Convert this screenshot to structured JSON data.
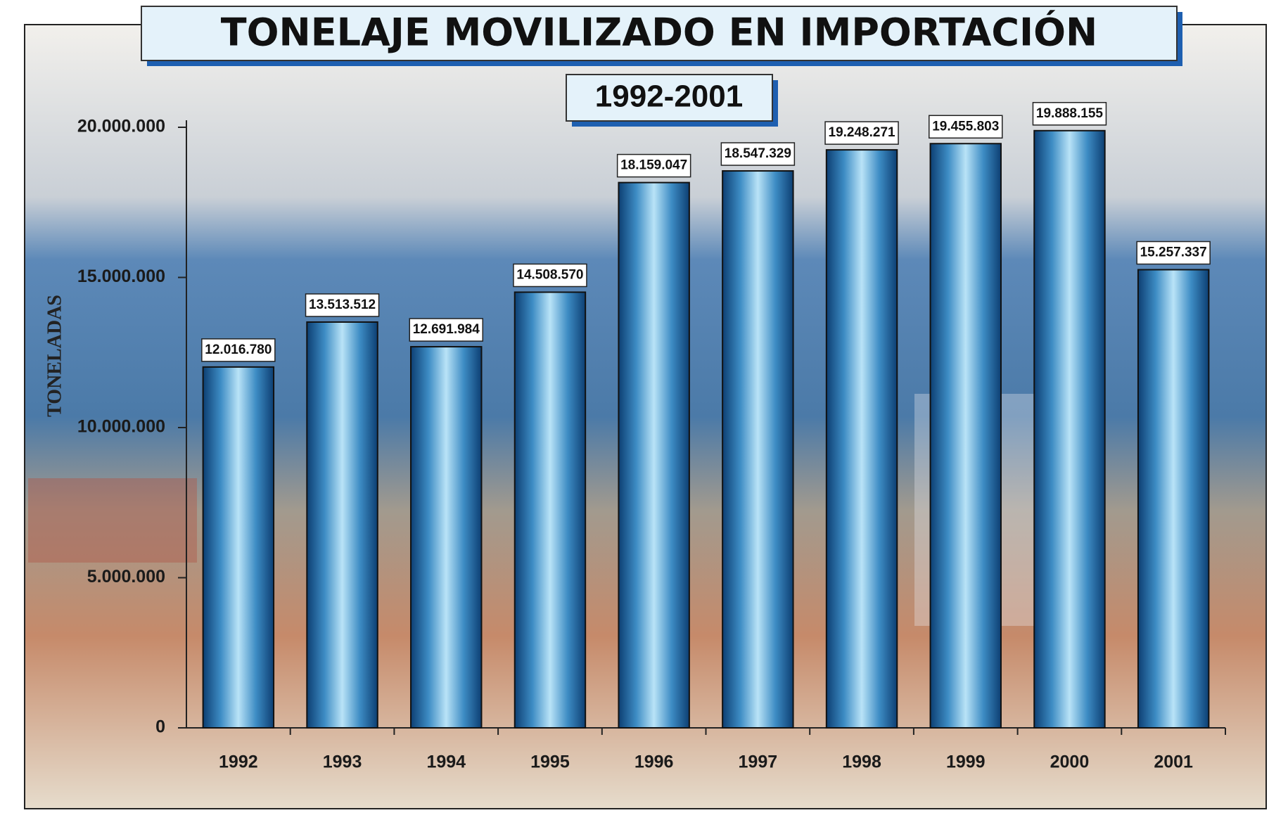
{
  "chart_data": {
    "type": "bar",
    "title": "TONELAJE MOVILIZADO EN IMPORTACIÓN",
    "subtitle": "1992-2001",
    "y_label": "TONELADAS",
    "categories": [
      "1992",
      "1993",
      "1994",
      "1995",
      "1996",
      "1997",
      "1998",
      "1999",
      "2000",
      "2001"
    ],
    "values": [
      12016780,
      13513512,
      12691984,
      14508570,
      18159047,
      18547329,
      19248271,
      19455803,
      19888155,
      15257337
    ],
    "value_labels": [
      "12.016.780",
      "13.513.512",
      "12.691.984",
      "14.508.570",
      "18.159.047",
      "18.547.329",
      "19.248.271",
      "19.455.803",
      "19.888.155",
      "15.257.337"
    ],
    "color": "#3a8fc8",
    "ylim": [
      0,
      20000000
    ],
    "yticks": [
      0,
      {
        "value": 5000000,
        "label": "5.000.000"
      },
      {
        "value": 10000000,
        "label": "10.000.000"
      },
      {
        "value": 15000000,
        "label": "15.000.000"
      },
      {
        "value": 20000000,
        "label": "20.000.000"
      }
    ],
    "grid": false
  }
}
